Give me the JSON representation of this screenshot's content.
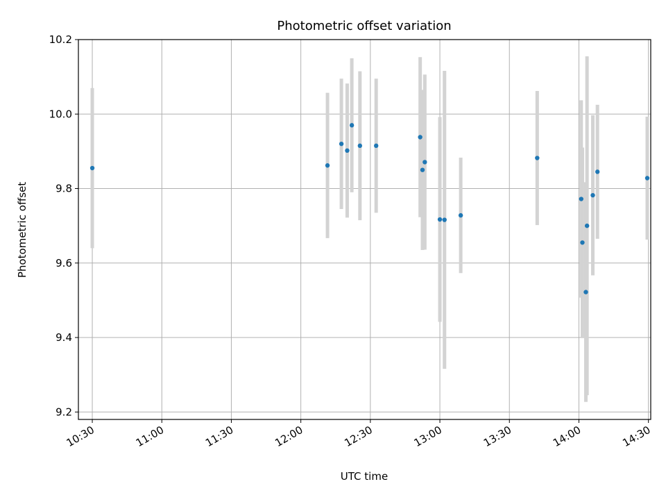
{
  "chart_data": {
    "type": "scatter",
    "title": "Photometric offset variation",
    "xlabel": "UTC time",
    "ylabel": "Photometric offset",
    "x_axis_kind": "time",
    "xlim": [
      "10:24",
      "14:31"
    ],
    "ylim": [
      9.18,
      10.2
    ],
    "x_ticks": [
      "10:30",
      "11:00",
      "11:30",
      "12:00",
      "12:30",
      "13:00",
      "13:30",
      "14:00",
      "14:30"
    ],
    "y_ticks": [
      "9.2",
      "9.4",
      "9.6",
      "9.8",
      "10.0",
      "10.2"
    ],
    "grid": true,
    "point_color": "#1f77b4",
    "errorbar_color": "#d3d3d3",
    "points": [
      {
        "x": "10:30:00",
        "y": 9.855,
        "err": 0.215
      },
      {
        "x": "12:11:30",
        "y": 9.862,
        "err": 0.195
      },
      {
        "x": "12:17:30",
        "y": 9.92,
        "err": 0.175
      },
      {
        "x": "12:20:00",
        "y": 9.902,
        "err": 0.18
      },
      {
        "x": "12:22:00",
        "y": 9.97,
        "err": 0.18
      },
      {
        "x": "12:25:30",
        "y": 9.915,
        "err": 0.2
      },
      {
        "x": "12:32:30",
        "y": 9.915,
        "err": 0.18
      },
      {
        "x": "12:51:30",
        "y": 9.938,
        "err": 0.215
      },
      {
        "x": "12:52:30",
        "y": 9.85,
        "err": 0.215
      },
      {
        "x": "12:53:30",
        "y": 9.871,
        "err": 0.235
      },
      {
        "x": "13:00:00",
        "y": 9.717,
        "err": 0.275
      },
      {
        "x": "13:02:00",
        "y": 9.716,
        "err": 0.4
      },
      {
        "x": "13:09:00",
        "y": 9.728,
        "err": 0.155
      },
      {
        "x": "13:42:00",
        "y": 9.882,
        "err": 0.18
      },
      {
        "x": "14:01:00",
        "y": 9.772,
        "err": 0.265
      },
      {
        "x": "14:01:30",
        "y": 9.655,
        "err": 0.255
      },
      {
        "x": "14:03:00",
        "y": 9.522,
        "err": 0.295
      },
      {
        "x": "14:03:30",
        "y": 9.7,
        "err": 0.455
      },
      {
        "x": "14:06:00",
        "y": 9.782,
        "err": 0.215
      },
      {
        "x": "14:08:00",
        "y": 9.845,
        "err": 0.18
      },
      {
        "x": "14:29:30",
        "y": 9.828,
        "err": 0.165
      }
    ]
  }
}
